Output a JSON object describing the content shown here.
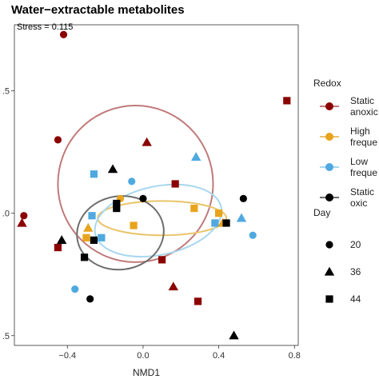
{
  "chart_data": {
    "type": "scatter",
    "title": "Water−extractable metabolites",
    "annotation": "Stress = 0.115",
    "xlabel": "NMD1",
    "ylabel": "",
    "xlim": [
      -0.68,
      0.82
    ],
    "ylim": [
      -0.54,
      0.77
    ],
    "x_ticks": [
      {
        "value": -0.4,
        "label": "−0.4"
      },
      {
        "value": 0.0,
        "label": "0.0"
      },
      {
        "value": 0.4,
        "label": "0.4"
      },
      {
        "value": 0.8,
        "label": "0.8"
      }
    ],
    "y_ticks": [
      {
        "value": 0.5,
        "label": ".5"
      },
      {
        "value": 0.0,
        "label": ".0"
      },
      {
        "value": -0.5,
        "label": ".5"
      }
    ],
    "grid": false,
    "legend_placement": "right",
    "colors": {
      "static_anoxic": "#8b0000",
      "high_frequency": "#e8a41c",
      "low_frequency": "#4fa9e0",
      "static_oxic": "#000000",
      "ellipse_static_anoxic": "#c07a7a",
      "ellipse_high_frequency": "#e9c46a",
      "ellipse_low_frequency": "#a8d7ee",
      "ellipse_static_oxic": "#6e6e6e"
    },
    "redox_legend": {
      "title": "Redox",
      "items": [
        {
          "key": "static_anoxic",
          "lines": [
            "Static",
            "anoxic"
          ]
        },
        {
          "key": "high_frequency",
          "lines": [
            "High",
            "freque"
          ]
        },
        {
          "key": "low_frequency",
          "lines": [
            "Low",
            "freque"
          ]
        },
        {
          "key": "static_oxic",
          "lines": [
            "Static",
            "oxic"
          ]
        }
      ]
    },
    "day_legend": {
      "title": "Day",
      "items": [
        {
          "shape": "circle",
          "label": "20"
        },
        {
          "shape": "triangle",
          "label": "36"
        },
        {
          "shape": "square",
          "label": "44"
        }
      ]
    },
    "ellipses": [
      {
        "group": "static_anoxic",
        "cx": -0.04,
        "cy": 0.12,
        "rx": 0.41,
        "ry": 0.32,
        "angle": 0
      },
      {
        "group": "high_frequency",
        "cx": 0.1,
        "cy": -0.02,
        "rx": 0.34,
        "ry": 0.07,
        "angle": 0
      },
      {
        "group": "low_frequency",
        "cx": 0.08,
        "cy": -0.03,
        "rx": 0.34,
        "ry": 0.14,
        "angle": 12
      },
      {
        "group": "static_oxic",
        "cx": -0.12,
        "cy": -0.08,
        "rx": 0.23,
        "ry": 0.15,
        "angle": 8
      }
    ],
    "series": [
      {
        "group": "static_anoxic",
        "day": "20",
        "points": [
          [
            -0.42,
            0.73
          ],
          [
            -0.45,
            0.3
          ],
          [
            -0.63,
            -0.01
          ]
        ]
      },
      {
        "group": "static_anoxic",
        "day": "36",
        "points": [
          [
            0.02,
            0.29
          ],
          [
            -0.64,
            -0.04
          ],
          [
            0.16,
            -0.3
          ]
        ]
      },
      {
        "group": "static_anoxic",
        "day": "44",
        "points": [
          [
            0.76,
            0.46
          ],
          [
            0.17,
            0.12
          ],
          [
            -0.45,
            -0.14
          ],
          [
            0.1,
            -0.19
          ],
          [
            0.29,
            -0.36
          ]
        ]
      },
      {
        "group": "high_frequency",
        "day": "20",
        "points": [
          [
            -0.12,
            0.06
          ]
        ]
      },
      {
        "group": "high_frequency",
        "day": "36",
        "points": [
          [
            -0.29,
            -0.06
          ],
          [
            0.42,
            -0.04
          ]
        ]
      },
      {
        "group": "high_frequency",
        "day": "44",
        "points": [
          [
            -0.3,
            -0.1
          ],
          [
            -0.05,
            -0.05
          ],
          [
            0.27,
            0.02
          ],
          [
            0.4,
            0.0
          ]
        ]
      },
      {
        "group": "low_frequency",
        "day": "20",
        "points": [
          [
            -0.06,
            0.13
          ],
          [
            0.58,
            -0.09
          ],
          [
            -0.36,
            -0.31
          ]
        ]
      },
      {
        "group": "low_frequency",
        "day": "36",
        "points": [
          [
            0.28,
            0.23
          ],
          [
            0.52,
            -0.02
          ]
        ]
      },
      {
        "group": "low_frequency",
        "day": "44",
        "points": [
          [
            -0.26,
            0.16
          ],
          [
            -0.27,
            -0.01
          ],
          [
            -0.22,
            -0.1
          ],
          [
            0.38,
            -0.04
          ]
        ]
      },
      {
        "group": "static_oxic",
        "day": "20",
        "points": [
          [
            0.0,
            0.06
          ],
          [
            0.53,
            0.06
          ],
          [
            -0.28,
            -0.35
          ]
        ]
      },
      {
        "group": "static_oxic",
        "day": "36",
        "points": [
          [
            -0.16,
            0.18
          ],
          [
            -0.43,
            -0.11
          ]
        ]
      },
      {
        "group": "static_oxic",
        "day": "44",
        "points": [
          [
            -0.14,
            0.04
          ],
          [
            -0.14,
            0.02
          ],
          [
            0.44,
            -0.04
          ],
          [
            -0.31,
            -0.18
          ],
          [
            -0.26,
            -0.11
          ]
        ]
      },
      {
        "group": "static_oxic",
        "day": "36",
        "points": [
          [
            0.48,
            -0.5
          ]
        ]
      }
    ]
  }
}
